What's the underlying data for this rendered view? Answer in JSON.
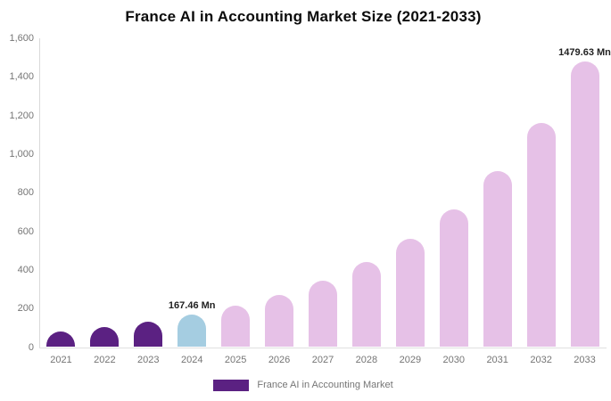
{
  "chart_data": {
    "type": "bar",
    "title": "France AI in Accounting Market Size (2021-2033)",
    "categories": [
      "2021",
      "2022",
      "2023",
      "2024",
      "2025",
      "2026",
      "2027",
      "2028",
      "2029",
      "2030",
      "2031",
      "2032",
      "2033"
    ],
    "values": [
      81,
      103,
      131,
      167.46,
      213,
      272,
      346,
      441,
      562,
      715,
      911,
      1161,
      1479.63
    ],
    "bar_colors": [
      "#5b2182",
      "#5b2182",
      "#5b2182",
      "#a5cde1",
      "#e6c1e7",
      "#e6c1e7",
      "#e6c1e7",
      "#e6c1e7",
      "#e6c1e7",
      "#e6c1e7",
      "#e6c1e7",
      "#e6c1e7",
      "#e6c1e7"
    ],
    "xlabel": "",
    "ylabel": "",
    "ylim": [
      0,
      1600
    ],
    "yticks": [
      "0",
      "200",
      "400",
      "600",
      "800",
      "1,000",
      "1,200",
      "1,400",
      "1,600"
    ],
    "grid": false,
    "annotations": [
      {
        "category": "2024",
        "text": "167.46 Mn"
      },
      {
        "category": "2033",
        "text": "1479.63 Mn"
      }
    ],
    "legend": {
      "label": "France AI in Accounting Market",
      "swatch_color": "#5b2182",
      "position": "bottom"
    },
    "colors": {
      "title_text": "#0b0b0b",
      "axis_label_text": "#757575",
      "annotation_text": "#222222",
      "axis_line": "#d9d9d9",
      "background": "#ffffff"
    }
  }
}
